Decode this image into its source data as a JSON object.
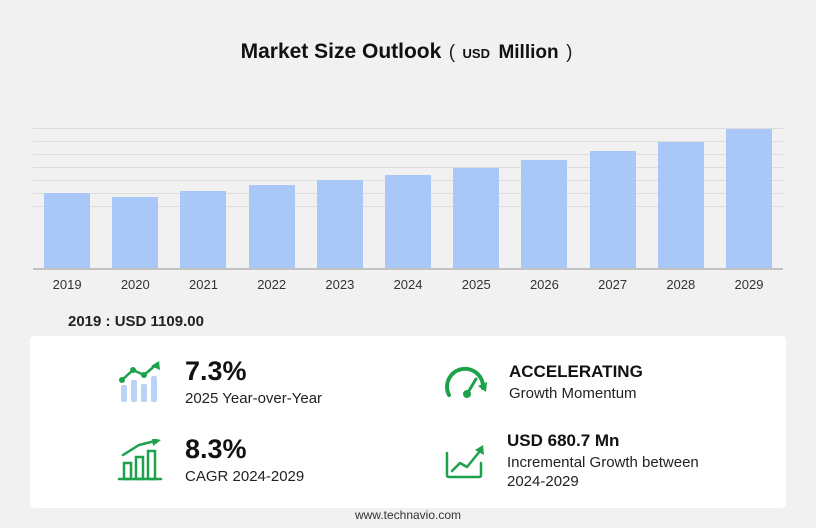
{
  "page": {
    "title": "Market Size Outlook",
    "subtitle_open": "(",
    "subtitle_currency": "USD",
    "subtitle_unit": "Million",
    "subtitle_close": ")",
    "base_year_note": "2019 : USD 1109.00",
    "footer": "www.technavio.com"
  },
  "chart_data": {
    "type": "bar",
    "title": "Market Size Outlook (USD Million)",
    "categories": [
      "2019",
      "2020",
      "2021",
      "2022",
      "2023",
      "2024",
      "2025",
      "2026",
      "2027",
      "2028",
      "2029"
    ],
    "values": [
      1109,
      1050,
      1139,
      1227,
      1301,
      1390,
      1491,
      1612,
      1745,
      1878,
      2070
    ],
    "xlabel": "",
    "ylabel": "USD Million",
    "ylim": [
      0,
      2200
    ],
    "grid": true,
    "legend": "none",
    "bar_color": "#a9c8f8",
    "annotation": "2019 : USD 1109.00"
  },
  "stats": [
    {
      "id": "yoy",
      "icon": "growth-bars-icon",
      "value": "7.3%",
      "label": "2025 Year-over-Year"
    },
    {
      "id": "momentum",
      "icon": "speedometer-icon",
      "value": "ACCELERATING",
      "label": "Growth Momentum"
    },
    {
      "id": "cagr",
      "icon": "cagr-chart-icon",
      "value": "8.3%",
      "label": "CAGR 2024-2029"
    },
    {
      "id": "incremental",
      "icon": "incremental-growth-icon",
      "value": "USD 680.7 Mn",
      "label": "Incremental Growth between 2024-2029"
    }
  ],
  "colors": {
    "accent_green": "#1da24b",
    "bar_blue": "#a9c8f8",
    "background": "#f1f1f1",
    "panel": "#ffffff"
  }
}
